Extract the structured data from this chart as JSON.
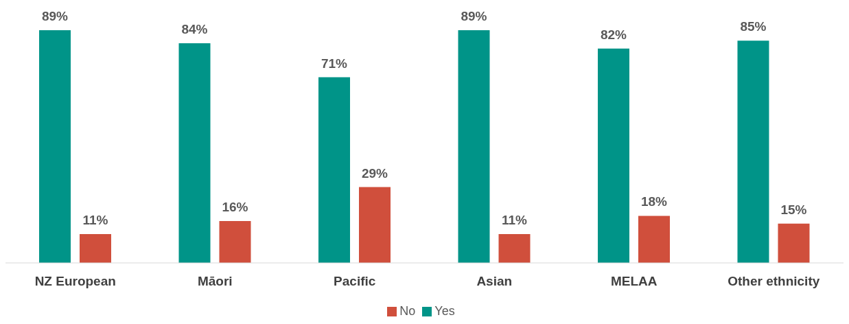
{
  "chart_data": {
    "type": "bar",
    "categories": [
      "NZ European",
      "Māori",
      "Pacific",
      "Asian",
      "MELAA",
      "Other ethnicity"
    ],
    "series": [
      {
        "name": "Yes",
        "color": "#009488",
        "values": [
          89,
          84,
          71,
          89,
          82,
          85
        ],
        "value_labels": [
          "89%",
          "84%",
          "71%",
          "89%",
          "82%",
          "85%"
        ]
      },
      {
        "name": "No",
        "color": "#d04f3c",
        "values": [
          11,
          16,
          29,
          11,
          18,
          15
        ],
        "value_labels": [
          "11%",
          "16%",
          "29%",
          "11%",
          "18%",
          "15%"
        ]
      }
    ],
    "legend": "bottom",
    "grid": false
  }
}
